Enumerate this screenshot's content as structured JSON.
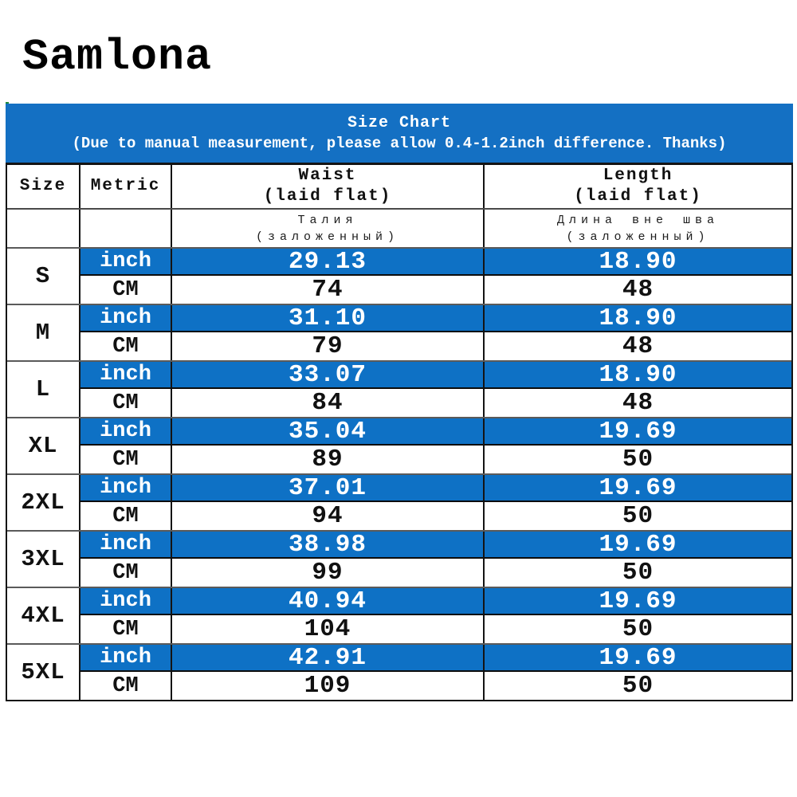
{
  "brand": {
    "logo": "Samlona"
  },
  "banner": {
    "title": "Size Chart",
    "subtitle": "(Due to manual measurement, please allow 0.4-1.2inch difference. Thanks)"
  },
  "table": {
    "headers": {
      "size": "Size",
      "metric": "Metric",
      "waist_line1": "Waist",
      "waist_line2": "(laid flat)",
      "length_line1": "Length",
      "length_line2": "(laid flat)",
      "waist_ru_line1": "Талия",
      "waist_ru_line2": "(заложенный)",
      "length_ru_line1": "Длина вне шва",
      "length_ru_line2": "(заложенный)"
    },
    "unit_labels": {
      "inch": "inch",
      "cm": "CM"
    },
    "rows": [
      {
        "size": "S",
        "inch": {
          "waist": "29.13",
          "length": "18.90"
        },
        "cm": {
          "waist": "74",
          "length": "48"
        }
      },
      {
        "size": "M",
        "inch": {
          "waist": "31.10",
          "length": "18.90"
        },
        "cm": {
          "waist": "79",
          "length": "48"
        }
      },
      {
        "size": "L",
        "inch": {
          "waist": "33.07",
          "length": "18.90"
        },
        "cm": {
          "waist": "84",
          "length": "48"
        }
      },
      {
        "size": "XL",
        "inch": {
          "waist": "35.04",
          "length": "19.69"
        },
        "cm": {
          "waist": "89",
          "length": "50"
        }
      },
      {
        "size": "2XL",
        "inch": {
          "waist": "37.01",
          "length": "19.69"
        },
        "cm": {
          "waist": "94",
          "length": "50"
        }
      },
      {
        "size": "3XL",
        "inch": {
          "waist": "38.98",
          "length": "19.69"
        },
        "cm": {
          "waist": "99",
          "length": "50"
        }
      },
      {
        "size": "4XL",
        "inch": {
          "waist": "40.94",
          "length": "19.69"
        },
        "cm": {
          "waist": "104",
          "length": "50"
        }
      },
      {
        "size": "5XL",
        "inch": {
          "waist": "42.91",
          "length": "19.69"
        },
        "cm": {
          "waist": "109",
          "length": "50"
        }
      }
    ]
  },
  "colors": {
    "accent_blue": "#0e71c5",
    "banner_blue": "#1470c3",
    "text_dark": "#111111",
    "text_white": "#ffffff"
  }
}
